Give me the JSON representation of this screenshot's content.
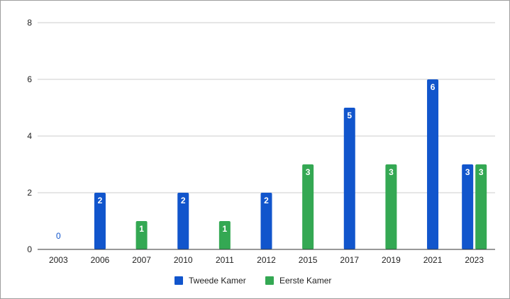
{
  "chart_data": {
    "type": "bar",
    "title": "",
    "xlabel": "",
    "ylabel": "",
    "ylim": [
      0,
      8
    ],
    "yticks": [
      0,
      2,
      4,
      6,
      8
    ],
    "grid": true,
    "legend_position": "bottom",
    "categories": [
      "2003",
      "2006",
      "2007",
      "2010",
      "2011",
      "2012",
      "2015",
      "2017",
      "2019",
      "2021",
      "2023"
    ],
    "series": [
      {
        "name": "Tweede Kamer",
        "color": "#1155cc",
        "values": [
          0,
          2,
          null,
          2,
          null,
          2,
          null,
          5,
          null,
          6,
          3
        ]
      },
      {
        "name": "Eerste Kamer",
        "color": "#34a853",
        "values": [
          null,
          null,
          1,
          null,
          1,
          null,
          3,
          null,
          3,
          null,
          3
        ]
      }
    ]
  }
}
